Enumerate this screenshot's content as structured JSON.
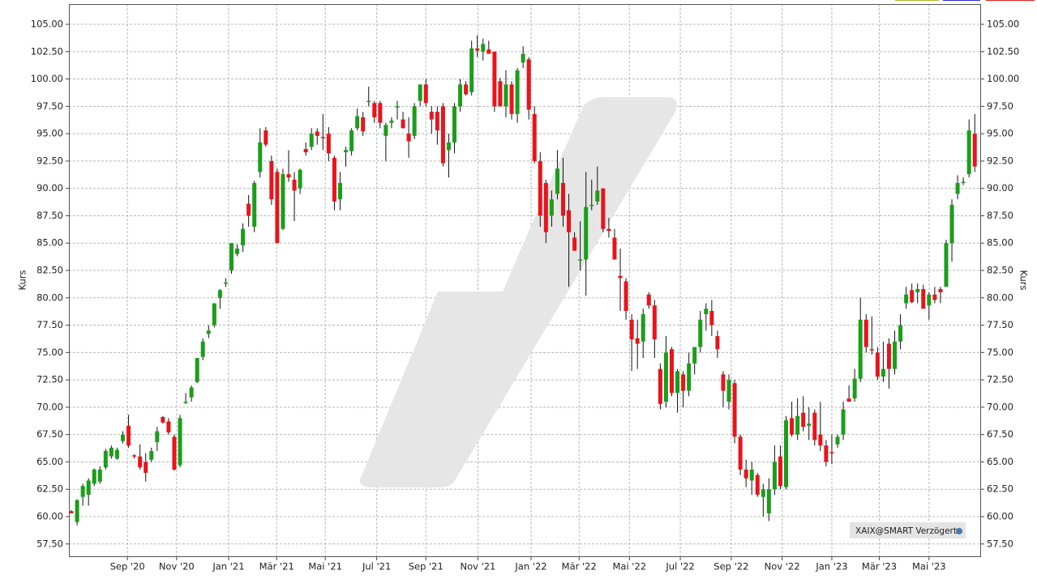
{
  "chart_data": {
    "type": "candlestick",
    "y_label": "Kurs",
    "source_label": "XAIX@SMART Verzögert",
    "up_color": "#1a9e1a",
    "down_color": "#e8141c",
    "grid": true,
    "ylim": [
      56.3,
      106.85
    ],
    "yticks": [
      {
        "value": 57.5,
        "label": "57.50"
      },
      {
        "value": 60,
        "label": "60.00"
      },
      {
        "value": 62.5,
        "label": "62.50"
      },
      {
        "value": 65,
        "label": "65.00"
      },
      {
        "value": 67.5,
        "label": "67.50"
      },
      {
        "value": 70,
        "label": "70.00"
      },
      {
        "value": 72.5,
        "label": "72.50"
      },
      {
        "value": 75,
        "label": "75.00"
      },
      {
        "value": 77.5,
        "label": "77.50"
      },
      {
        "value": 80,
        "label": "80.00"
      },
      {
        "value": 82.5,
        "label": "82.50"
      },
      {
        "value": 85,
        "label": "85.00"
      },
      {
        "value": 87.5,
        "label": "87.50"
      },
      {
        "value": 90,
        "label": "90.00"
      },
      {
        "value": 92.5,
        "label": "92.50"
      },
      {
        "value": 95,
        "label": "95.00"
      },
      {
        "value": 97.5,
        "label": "97.50"
      },
      {
        "value": 100,
        "label": "100.00"
      },
      {
        "value": 102.5,
        "label": "102.50"
      },
      {
        "value": 105,
        "label": "105.00"
      }
    ],
    "xlim": [
      -0.43,
      159.1
    ],
    "xticks": [
      {
        "value": 9.8,
        "label": "Sep '20"
      },
      {
        "value": 18.4,
        "label": "Nov '20"
      },
      {
        "value": 27.5,
        "label": "Jan '21"
      },
      {
        "value": 35.9,
        "label": "Mär '21"
      },
      {
        "value": 44.4,
        "label": "Mai '21"
      },
      {
        "value": 53.4,
        "label": "Jul '21"
      },
      {
        "value": 62,
        "label": "Sep '21"
      },
      {
        "value": 71.1,
        "label": "Nov '21"
      },
      {
        "value": 80.4,
        "label": "Jan '22"
      },
      {
        "value": 88.8,
        "label": "Mär '22"
      },
      {
        "value": 97.6,
        "label": "Mai '22"
      },
      {
        "value": 106.5,
        "label": "Jul '22"
      },
      {
        "value": 115.4,
        "label": "Sep '22"
      },
      {
        "value": 124.3,
        "label": "Nov '22"
      },
      {
        "value": 133,
        "label": "Jan '23"
      },
      {
        "value": 141.3,
        "label": "Mär '23"
      },
      {
        "value": 150,
        "label": "Mai '23"
      }
    ],
    "ohlc": [
      [
        60.5,
        60.6,
        60.3,
        60.3
      ],
      [
        59.5,
        61.6,
        59.2,
        61.5
      ],
      [
        61.8,
        63,
        61,
        62.8
      ],
      [
        62,
        63.5,
        61,
        63.3
      ],
      [
        63,
        64.4,
        62.8,
        64.3
      ],
      [
        63.2,
        64.6,
        63,
        64.3
      ],
      [
        64.5,
        66.2,
        64.3,
        66
      ],
      [
        65.5,
        66.5,
        65.3,
        66.3
      ],
      [
        65.3,
        66.3,
        65.2,
        66.1
      ],
      [
        66.9,
        67.8,
        66.7,
        67.5
      ],
      [
        68.3,
        69.3,
        66.3,
        66.5
      ],
      [
        65.6,
        65.7,
        65.3,
        65.5
      ],
      [
        65.5,
        66.6,
        64.3,
        64.5
      ],
      [
        65,
        65.8,
        63.2,
        64
      ],
      [
        65.2,
        66.3,
        65,
        66
      ],
      [
        66.8,
        68.2,
        66,
        67.8
      ],
      [
        69.1,
        69.2,
        68.5,
        68.6
      ],
      [
        68.7,
        69,
        67.5,
        67.7
      ],
      [
        67.3,
        67.5,
        64.2,
        64.3
      ],
      [
        64.7,
        69.3,
        64.5,
        69
      ],
      [
        70.5,
        71.3,
        70.3,
        70.5
      ],
      [
        70.9,
        72,
        70.5,
        71.8
      ],
      [
        72.3,
        74.5,
        72.2,
        74.5
      ],
      [
        74.6,
        76.3,
        74.3,
        76
      ],
      [
        76.7,
        77.5,
        76.3,
        77
      ],
      [
        77.5,
        79.5,
        77.3,
        79.5
      ],
      [
        80,
        80.8,
        79,
        80.7
      ],
      [
        81.3,
        81.8,
        81,
        81.4
      ],
      [
        82.5,
        85,
        82.2,
        85
      ],
      [
        84,
        84.9,
        83.8,
        84.5
      ],
      [
        84.8,
        86.8,
        84.2,
        86.3
      ],
      [
        88.6,
        89.4,
        86.5,
        87.5
      ],
      [
        86.5,
        90.7,
        86,
        90.5
      ],
      [
        91.5,
        95.5,
        91,
        94.2
      ],
      [
        95.3,
        95.6,
        93.8,
        94
      ],
      [
        92.5,
        93,
        88.5,
        89
      ],
      [
        91.5,
        91.8,
        85,
        85
      ],
      [
        86.3,
        91.8,
        86.2,
        91.3
      ],
      [
        91.3,
        93.5,
        90.6,
        91
      ],
      [
        90.8,
        91.5,
        87,
        89.8
      ],
      [
        90,
        91.8,
        89.5,
        91.7
      ],
      [
        93.6,
        94.2,
        93,
        93.3
      ],
      [
        93.8,
        95.5,
        93.5,
        95
      ],
      [
        95.2,
        95.5,
        94,
        94.8
      ],
      [
        94.7,
        96.8,
        93.5,
        94.6
      ],
      [
        95,
        95.6,
        92.5,
        93.2
      ],
      [
        92.8,
        93,
        88,
        88.8
      ],
      [
        89,
        91.5,
        88,
        90.5
      ],
      [
        93.3,
        93.8,
        92,
        93.5
      ],
      [
        93.4,
        95.5,
        93,
        95.3
      ],
      [
        95.5,
        97.3,
        95.3,
        96.6
      ],
      [
        96.5,
        97,
        94.8,
        95.2
      ],
      [
        98,
        99.3,
        97.5,
        98
      ],
      [
        97.8,
        98,
        96,
        96.5
      ],
      [
        97.8,
        98,
        95.5,
        96
      ],
      [
        94.8,
        96,
        92.5,
        95.8
      ],
      [
        96,
        96.5,
        95.5,
        96.2
      ],
      [
        97.5,
        98,
        96.3,
        97.5
      ],
      [
        96.3,
        97,
        95.5,
        95.5
      ],
      [
        95,
        96.5,
        92.8,
        94.3
      ],
      [
        94.8,
        97.8,
        94.5,
        97.5
      ],
      [
        98,
        99.5,
        97.5,
        99.5
      ],
      [
        99.5,
        100,
        97.5,
        97.8
      ],
      [
        97,
        97.5,
        95,
        96.3
      ],
      [
        97,
        97.5,
        94,
        95.3
      ],
      [
        97.5,
        97.8,
        92,
        92.3
      ],
      [
        93.5,
        95,
        91,
        94.2
      ],
      [
        94.2,
        97.8,
        93.2,
        97.5
      ],
      [
        97.5,
        100,
        97,
        99.5
      ],
      [
        99.5,
        99.8,
        98.5,
        98.6
      ],
      [
        98.8,
        103.5,
        98.5,
        102.8
      ],
      [
        102.8,
        104,
        102,
        102.6
      ],
      [
        102.5,
        103.7,
        101.7,
        103.2
      ],
      [
        102.7,
        103.5,
        102.3,
        102.3
      ],
      [
        102.5,
        102.5,
        97,
        97.5
      ],
      [
        99.8,
        100.1,
        97.5,
        97.5
      ],
      [
        97.5,
        100.8,
        96.5,
        99.5
      ],
      [
        99.5,
        99.8,
        96.3,
        96.8
      ],
      [
        96.8,
        101,
        96,
        100.8
      ],
      [
        101.5,
        103,
        101,
        102.3
      ],
      [
        101.8,
        102,
        96.3,
        97.2
      ],
      [
        96.8,
        97.5,
        92.3,
        92.5
      ],
      [
        92.5,
        93.3,
        86.5,
        87.5
      ],
      [
        90.5,
        90.8,
        85,
        86
      ],
      [
        87.5,
        89.8,
        86.5,
        89
      ],
      [
        89.5,
        93.5,
        89,
        91.8
      ],
      [
        90.5,
        92.8,
        86.5,
        87.5
      ],
      [
        88,
        89.5,
        81,
        86
      ],
      [
        85.5,
        86,
        84.5,
        84.3
      ],
      [
        83.5,
        87,
        82.5,
        83.5
      ],
      [
        83.5,
        91.5,
        80.2,
        88.3
      ],
      [
        88.5,
        90.8,
        88,
        88.5
      ],
      [
        88.8,
        92,
        88.5,
        89.8
      ],
      [
        90,
        90,
        86,
        86.3
      ],
      [
        86.3,
        87.3,
        85.5,
        86.1
      ],
      [
        85.5,
        86.3,
        83.5,
        83.5
      ],
      [
        82,
        84.5,
        78.8,
        81.8
      ],
      [
        81.5,
        81.8,
        78,
        78.8
      ],
      [
        78,
        78.5,
        73.3,
        76.2
      ],
      [
        76.3,
        78,
        73.5,
        75.8
      ],
      [
        76,
        79,
        74.5,
        78.5
      ],
      [
        80.3,
        80.5,
        79,
        79.3
      ],
      [
        79.3,
        79.8,
        74.5,
        76.2
      ],
      [
        73.5,
        74,
        69.8,
        70.3
      ],
      [
        70.5,
        76.5,
        70,
        75
      ],
      [
        75.3,
        75.5,
        71,
        71.3
      ],
      [
        71.3,
        73.5,
        69.5,
        73.3
      ],
      [
        73,
        73.3,
        70,
        71.5
      ],
      [
        71.5,
        75,
        71,
        74
      ],
      [
        74,
        75.5,
        73,
        75.5
      ],
      [
        75.5,
        78.8,
        75,
        78
      ],
      [
        78.5,
        79.5,
        77,
        79
      ],
      [
        78.8,
        79.8,
        76.5,
        77.5
      ],
      [
        76.5,
        77,
        74.5,
        75.3
      ],
      [
        73,
        73.3,
        70,
        71.5
      ],
      [
        70.5,
        73,
        69.8,
        72.5
      ],
      [
        72.2,
        72.5,
        66.7,
        67.3
      ],
      [
        67.3,
        67.5,
        63.8,
        64.3
      ],
      [
        64.3,
        65.2,
        62.7,
        63.5
      ],
      [
        63.3,
        65,
        62,
        64.3
      ],
      [
        63.8,
        64,
        61.8,
        62
      ],
      [
        61.8,
        63,
        60,
        62.5
      ],
      [
        60.3,
        63.5,
        59.6,
        62.5
      ],
      [
        62.5,
        66.5,
        62,
        65
      ],
      [
        65.5,
        66.5,
        62.5,
        62.8
      ],
      [
        62.7,
        69.2,
        62.5,
        68.8
      ],
      [
        69,
        70.5,
        67.3,
        67.5
      ],
      [
        67.5,
        70.8,
        67,
        69.2
      ],
      [
        69.5,
        71,
        67.8,
        68.2
      ],
      [
        68.3,
        70,
        67,
        68.5
      ],
      [
        69.5,
        69.8,
        66.5,
        67
      ],
      [
        67.5,
        70.5,
        66,
        66.5
      ],
      [
        66.5,
        67,
        64.6,
        65
      ],
      [
        65.9,
        67.5,
        64.8,
        65.8
      ],
      [
        66.6,
        67.5,
        66.3,
        67.3
      ],
      [
        67.5,
        70.5,
        67,
        69.8
      ],
      [
        70.8,
        72,
        70.5,
        70.5
      ],
      [
        70.8,
        73.5,
        70.5,
        72.6
      ],
      [
        72.6,
        80,
        72.3,
        78
      ],
      [
        78,
        78.5,
        75,
        75.5
      ],
      [
        75.3,
        78.3,
        74.8,
        75.2
      ],
      [
        75,
        75.5,
        72.5,
        72.8
      ],
      [
        72.8,
        76,
        72.3,
        73.5
      ],
      [
        75.8,
        76.3,
        71.7,
        73.5
      ],
      [
        73.5,
        77,
        73,
        76
      ],
      [
        76,
        78.5,
        75.3,
        77.5
      ],
      [
        79.5,
        81,
        79,
        80.3
      ],
      [
        80.7,
        81.3,
        79.5,
        79.6
      ],
      [
        80.5,
        81.3,
        79.5,
        80.8
      ],
      [
        80.8,
        81.2,
        79,
        79
      ],
      [
        79.3,
        80.5,
        78,
        80.3
      ],
      [
        80.3,
        81,
        79.5,
        79.8
      ],
      [
        80.8,
        81,
        79.5,
        80.5
      ],
      [
        81,
        85.3,
        81,
        85
      ],
      [
        85,
        89,
        83.3,
        88.5
      ],
      [
        89.5,
        91.2,
        89,
        90.5
      ],
      [
        90.5,
        91,
        90.3,
        90.6
      ],
      [
        91.3,
        96.3,
        91,
        95.3
      ],
      [
        95,
        96.8,
        91.5,
        92
      ]
    ]
  }
}
